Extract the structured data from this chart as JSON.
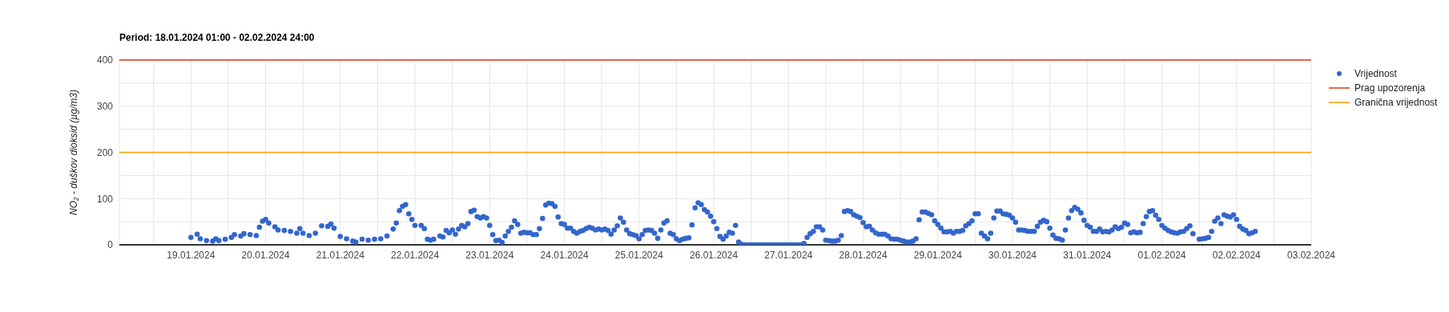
{
  "chart_data": {
    "type": "scatter",
    "title": "Period: 18.01.2024 01:00 - 02.02.2024 24:00",
    "ylabel": "NO₂ - duškov dioksid (µg/m3)",
    "xlim": [
      "2024-01-18T01:00",
      "2024-02-03"
    ],
    "xticks": [
      {
        "value": "2024-01-18T12:00",
        "label": null
      },
      {
        "value": "2024-01-19",
        "label": "19.01.2024"
      },
      {
        "value": "2024-01-19T12:00",
        "label": null
      },
      {
        "value": "2024-01-20",
        "label": "20.01.2024"
      },
      {
        "value": "2024-01-20T12:00",
        "label": null
      },
      {
        "value": "2024-01-21",
        "label": "21.01.2024"
      },
      {
        "value": "2024-01-21T12:00",
        "label": null
      },
      {
        "value": "2024-01-22",
        "label": "22.01.2024"
      },
      {
        "value": "2024-01-22T12:00",
        "label": null
      },
      {
        "value": "2024-01-23",
        "label": "23.01.2024"
      },
      {
        "value": "2024-01-23T12:00",
        "label": null
      },
      {
        "value": "2024-01-24",
        "label": "24.01.2024"
      },
      {
        "value": "2024-01-24T12:00",
        "label": null
      },
      {
        "value": "2024-01-25",
        "label": "25.01.2024"
      },
      {
        "value": "2024-01-25T12:00",
        "label": null
      },
      {
        "value": "2024-01-26",
        "label": "26.01.2024"
      },
      {
        "value": "2024-01-26T12:00",
        "label": null
      },
      {
        "value": "2024-01-27",
        "label": "27.01.2024"
      },
      {
        "value": "2024-01-27T12:00",
        "label": null
      },
      {
        "value": "2024-01-28",
        "label": "28.01.2024"
      },
      {
        "value": "2024-01-28T12:00",
        "label": null
      },
      {
        "value": "2024-01-29",
        "label": "29.01.2024"
      },
      {
        "value": "2024-01-29T12:00",
        "label": null
      },
      {
        "value": "2024-01-30",
        "label": "30.01.2024"
      },
      {
        "value": "2024-01-30T12:00",
        "label": null
      },
      {
        "value": "2024-01-31",
        "label": "31.01.2024"
      },
      {
        "value": "2024-01-31T12:00",
        "label": null
      },
      {
        "value": "2024-02-01",
        "label": "01.02.2024"
      },
      {
        "value": "2024-02-01T12:00",
        "label": null
      },
      {
        "value": "2024-02-02",
        "label": "02.02.2024"
      },
      {
        "value": "2024-02-02T12:00",
        "label": null
      },
      {
        "value": "2024-02-03",
        "label": "03.02.2024"
      }
    ],
    "ylim": [
      0,
      400
    ],
    "yticks": [
      0,
      {
        "value": 50,
        "label": null
      },
      100,
      {
        "value": 150,
        "label": null
      },
      200,
      {
        "value": 250,
        "label": null
      },
      300,
      {
        "value": 350,
        "label": null
      },
      400
    ],
    "grid": true,
    "legend": "top right",
    "marker": "circle",
    "ref_lines": [
      {
        "axis": "y",
        "value": 400,
        "label": "Prag upozorenja",
        "color": "#dc3912"
      },
      {
        "axis": "y",
        "value": 200,
        "label": "Granična vrijednost",
        "color": "#ff9900"
      }
    ],
    "series": [
      {
        "name": "Vrijednost",
        "color": "#3366cc",
        "x": [
          "2024-01-19T00:00",
          "2024-01-19T02:00",
          "2024-01-19T03:00",
          "2024-01-19T05:00",
          "2024-01-19T07:00",
          "2024-01-19T08:00",
          "2024-01-19T09:00",
          "2024-01-19T11:00",
          "2024-01-19T13:00",
          "2024-01-19T14:00",
          "2024-01-19T16:00",
          "2024-01-19T17:00",
          "2024-01-19T19:00",
          "2024-01-19T21:00",
          "2024-01-19T22:00",
          "2024-01-19T23:00",
          "2024-01-20T00:00",
          "2024-01-20T01:00",
          "2024-01-20T03:00",
          "2024-01-20T04:00",
          "2024-01-20T06:00",
          "2024-01-20T08:00",
          "2024-01-20T10:00",
          "2024-01-20T11:00",
          "2024-01-20T12:00",
          "2024-01-20T14:00",
          "2024-01-20T16:00",
          "2024-01-20T18:00",
          "2024-01-20T20:00",
          "2024-01-20T21:00",
          "2024-01-20T22:00",
          "2024-01-21T00:00",
          "2024-01-21T02:00",
          "2024-01-21T04:00",
          "2024-01-21T05:00",
          "2024-01-21T07:00",
          "2024-01-21T09:00",
          "2024-01-21T11:00",
          "2024-01-21T13:00",
          "2024-01-21T15:00",
          "2024-01-21T17:00",
          "2024-01-21T18:00",
          "2024-01-21T19:00",
          "2024-01-21T20:00",
          "2024-01-21T21:00",
          "2024-01-21T22:00",
          "2024-01-21T23:00",
          "2024-01-22T00:00",
          "2024-01-22T02:00",
          "2024-01-22T03:00",
          "2024-01-22T04:00",
          "2024-01-22T05:00",
          "2024-01-22T06:00",
          "2024-01-22T08:00",
          "2024-01-22T09:00",
          "2024-01-22T10:00",
          "2024-01-22T11:00",
          "2024-01-22T12:00",
          "2024-01-22T13:00",
          "2024-01-22T14:00",
          "2024-01-22T15:00",
          "2024-01-22T16:00",
          "2024-01-22T17:00",
          "2024-01-22T18:00",
          "2024-01-22T19:00",
          "2024-01-22T20:00",
          "2024-01-22T21:00",
          "2024-01-22T22:00",
          "2024-01-22T23:00",
          "2024-01-23T00:00",
          "2024-01-23T01:00",
          "2024-01-23T02:00",
          "2024-01-23T03:00",
          "2024-01-23T04:00",
          "2024-01-23T05:00",
          "2024-01-23T06:00",
          "2024-01-23T07:00",
          "2024-01-23T08:00",
          "2024-01-23T09:00",
          "2024-01-23T10:00",
          "2024-01-23T11:00",
          "2024-01-23T12:00",
          "2024-01-23T13:00",
          "2024-01-23T14:00",
          "2024-01-23T15:00",
          "2024-01-23T16:00",
          "2024-01-23T17:00",
          "2024-01-23T18:00",
          "2024-01-23T19:00",
          "2024-01-23T20:00",
          "2024-01-23T21:00",
          "2024-01-23T22:00",
          "2024-01-23T23:00",
          "2024-01-24T00:00",
          "2024-01-24T01:00",
          "2024-01-24T02:00",
          "2024-01-24T03:00",
          "2024-01-24T04:00",
          "2024-01-24T05:00",
          "2024-01-24T06:00",
          "2024-01-24T07:00",
          "2024-01-24T08:00",
          "2024-01-24T09:00",
          "2024-01-24T10:00",
          "2024-01-24T11:00",
          "2024-01-24T12:00",
          "2024-01-24T13:00",
          "2024-01-24T14:00",
          "2024-01-24T15:00",
          "2024-01-24T16:00",
          "2024-01-24T17:00",
          "2024-01-24T18:00",
          "2024-01-24T19:00",
          "2024-01-24T20:00",
          "2024-01-24T21:00",
          "2024-01-24T22:00",
          "2024-01-24T23:00",
          "2024-01-25T00:00",
          "2024-01-25T01:00",
          "2024-01-25T02:00",
          "2024-01-25T03:00",
          "2024-01-25T04:00",
          "2024-01-25T05:00",
          "2024-01-25T06:00",
          "2024-01-25T07:00",
          "2024-01-25T08:00",
          "2024-01-25T09:00",
          "2024-01-25T10:00",
          "2024-01-25T11:00",
          "2024-01-25T12:00",
          "2024-01-25T13:00",
          "2024-01-25T14:00",
          "2024-01-25T15:00",
          "2024-01-25T16:00",
          "2024-01-25T17:00",
          "2024-01-25T18:00",
          "2024-01-25T19:00",
          "2024-01-25T20:00",
          "2024-01-25T21:00",
          "2024-01-25T22:00",
          "2024-01-25T23:00",
          "2024-01-26T00:00",
          "2024-01-26T01:00",
          "2024-01-26T02:00",
          "2024-01-26T03:00",
          "2024-01-26T04:00",
          "2024-01-26T05:00",
          "2024-01-26T06:00",
          "2024-01-26T07:00",
          "2024-01-26T08:00",
          "2024-01-26T09:00",
          "2024-01-26T10:00",
          "2024-01-26T11:00",
          "2024-01-26T12:00",
          "2024-01-26T13:00",
          "2024-01-26T14:00",
          "2024-01-26T15:00",
          "2024-01-26T16:00",
          "2024-01-26T17:00",
          "2024-01-26T18:00",
          "2024-01-26T19:00",
          "2024-01-26T20:00",
          "2024-01-26T21:00",
          "2024-01-26T22:00",
          "2024-01-26T23:00",
          "2024-01-27T00:00",
          "2024-01-27T01:00",
          "2024-01-27T02:00",
          "2024-01-27T03:00",
          "2024-01-27T04:00",
          "2024-01-27T05:00",
          "2024-01-27T06:00",
          "2024-01-27T07:00",
          "2024-01-27T08:00",
          "2024-01-27T09:00",
          "2024-01-27T10:00",
          "2024-01-27T11:00",
          "2024-01-27T12:00",
          "2024-01-27T13:00",
          "2024-01-27T14:00",
          "2024-01-27T15:00",
          "2024-01-27T16:00",
          "2024-01-27T17:00",
          "2024-01-27T18:00",
          "2024-01-27T19:00",
          "2024-01-27T20:00",
          "2024-01-27T21:00",
          "2024-01-27T22:00",
          "2024-01-27T23:00",
          "2024-01-28T00:00",
          "2024-01-28T01:00",
          "2024-01-28T02:00",
          "2024-01-28T03:00",
          "2024-01-28T04:00",
          "2024-01-28T05:00",
          "2024-01-28T06:00",
          "2024-01-28T07:00",
          "2024-01-28T08:00",
          "2024-01-28T09:00",
          "2024-01-28T10:00",
          "2024-01-28T11:00",
          "2024-01-28T12:00",
          "2024-01-28T13:00",
          "2024-01-28T14:00",
          "2024-01-28T15:00",
          "2024-01-28T16:00",
          "2024-01-28T17:00",
          "2024-01-28T18:00",
          "2024-01-28T19:00",
          "2024-01-28T20:00",
          "2024-01-28T21:00",
          "2024-01-28T22:00",
          "2024-01-28T23:00",
          "2024-01-29T00:00",
          "2024-01-29T01:00",
          "2024-01-29T02:00",
          "2024-01-29T03:00",
          "2024-01-29T04:00",
          "2024-01-29T05:00",
          "2024-01-29T06:00",
          "2024-01-29T07:00",
          "2024-01-29T08:00",
          "2024-01-29T09:00",
          "2024-01-29T10:00",
          "2024-01-29T11:00",
          "2024-01-29T12:00",
          "2024-01-29T13:00",
          "2024-01-29T14:00",
          "2024-01-29T15:00",
          "2024-01-29T16:00",
          "2024-01-29T17:00",
          "2024-01-29T18:00",
          "2024-01-29T19:00",
          "2024-01-29T20:00",
          "2024-01-29T21:00",
          "2024-01-29T22:00",
          "2024-01-29T23:00",
          "2024-01-30T00:00",
          "2024-01-30T01:00",
          "2024-01-30T02:00",
          "2024-01-30T03:00",
          "2024-01-30T04:00",
          "2024-01-30T05:00",
          "2024-01-30T06:00",
          "2024-01-30T07:00",
          "2024-01-30T08:00",
          "2024-01-30T09:00",
          "2024-01-30T10:00",
          "2024-01-30T11:00",
          "2024-01-30T12:00",
          "2024-01-30T13:00",
          "2024-01-30T14:00",
          "2024-01-30T15:00",
          "2024-01-30T16:00",
          "2024-01-30T17:00",
          "2024-01-30T18:00",
          "2024-01-30T19:00",
          "2024-01-30T20:00",
          "2024-01-30T21:00",
          "2024-01-30T22:00",
          "2024-01-30T23:00",
          "2024-01-31T00:00",
          "2024-01-31T01:00",
          "2024-01-31T02:00",
          "2024-01-31T03:00",
          "2024-01-31T04:00",
          "2024-01-31T05:00",
          "2024-01-31T06:00",
          "2024-01-31T07:00",
          "2024-01-31T08:00",
          "2024-01-31T09:00",
          "2024-01-31T10:00",
          "2024-01-31T11:00",
          "2024-01-31T12:00",
          "2024-01-31T13:00",
          "2024-01-31T14:00",
          "2024-01-31T15:00",
          "2024-01-31T16:00",
          "2024-01-31T17:00",
          "2024-01-31T18:00",
          "2024-01-31T19:00",
          "2024-01-31T20:00",
          "2024-01-31T21:00",
          "2024-01-31T22:00",
          "2024-01-31T23:00",
          "2024-02-01T00:00",
          "2024-02-01T01:00",
          "2024-02-01T02:00",
          "2024-02-01T03:00",
          "2024-02-01T04:00",
          "2024-02-01T05:00",
          "2024-02-01T06:00",
          "2024-02-01T07:00",
          "2024-02-01T08:00",
          "2024-02-01T09:00",
          "2024-02-01T10:00",
          "2024-02-01T12:00",
          "2024-02-01T13:00",
          "2024-02-01T14:00",
          "2024-02-01T15:00",
          "2024-02-01T16:00",
          "2024-02-01T17:00",
          "2024-02-01T18:00",
          "2024-02-01T19:00",
          "2024-02-01T20:00",
          "2024-02-01T21:00",
          "2024-02-01T22:00",
          "2024-02-01T23:00",
          "2024-02-02T00:00",
          "2024-02-02T01:00",
          "2024-02-02T02:00",
          "2024-02-02T03:00",
          "2024-02-02T04:00",
          "2024-02-02T05:00",
          "2024-02-02T06:00"
        ],
        "values": [
          16,
          23,
          13,
          9,
          8,
          13,
          9,
          12,
          16,
          22,
          19,
          24,
          22,
          20,
          38,
          51,
          55,
          47,
          39,
          32,
          31,
          29,
          25,
          35,
          25,
          20,
          25,
          41,
          40,
          45,
          36,
          18,
          13,
          8,
          6,
          12,
          10,
          12,
          13,
          19,
          34,
          47,
          74,
          83,
          87,
          67,
          55,
          42,
          42,
          35,
          12,
          10,
          12,
          19,
          17,
          31,
          26,
          32,
          23,
          34,
          42,
          39,
          46,
          72,
          75,
          61,
          58,
          61,
          58,
          42,
          22,
          9,
          10,
          5,
          19,
          29,
          38,
          52,
          44,
          25,
          27,
          26,
          26,
          22,
          22,
          35,
          57,
          86,
          90,
          89,
          83,
          60,
          46,
          44,
          36,
          36,
          29,
          25,
          29,
          31,
          35,
          38,
          36,
          32,
          34,
          32,
          34,
          31,
          23,
          32,
          41,
          58,
          49,
          32,
          24,
          22,
          20,
          13,
          22,
          31,
          32,
          31,
          25,
          14,
          32,
          47,
          52,
          25,
          22,
          13,
          9,
          12,
          14,
          15,
          43,
          80,
          91,
          87,
          76,
          71,
          62,
          50,
          35,
          18,
          12,
          19,
          27,
          25,
          42,
          6,
          1,
          0,
          0,
          0,
          0,
          0,
          0,
          0,
          0,
          0,
          0,
          0,
          0,
          0,
          0,
          0,
          0,
          0,
          0,
          0,
          3,
          16,
          24,
          29,
          39,
          39,
          32,
          10,
          9,
          8,
          8,
          10,
          20,
          72,
          74,
          72,
          65,
          62,
          59,
          48,
          39,
          40,
          32,
          26,
          23,
          23,
          23,
          19,
          13,
          12,
          12,
          10,
          8,
          6,
          6,
          8,
          13,
          54,
          71,
          71,
          68,
          65,
          52,
          44,
          36,
          28,
          28,
          29,
          25,
          29,
          29,
          31,
          41,
          46,
          52,
          67,
          67,
          25,
          19,
          13,
          25,
          58,
          73,
          73,
          67,
          66,
          64,
          58,
          49,
          32,
          32,
          31,
          29,
          29,
          29,
          40,
          49,
          53,
          50,
          36,
          21,
          14,
          13,
          10,
          32,
          58,
          74,
          81,
          77,
          69,
          53,
          42,
          38,
          29,
          29,
          34,
          28,
          29,
          28,
          32,
          39,
          35,
          38,
          47,
          44,
          26,
          28,
          26,
          27,
          46,
          61,
          72,
          74,
          64,
          55,
          42,
          36,
          31,
          28,
          26,
          25,
          28,
          29,
          35,
          41,
          24,
          12,
          13,
          14,
          16,
          29,
          51,
          58,
          46,
          65,
          62,
          60,
          65,
          55,
          40,
          34,
          31,
          24,
          26,
          29
        ]
      }
    ]
  }
}
